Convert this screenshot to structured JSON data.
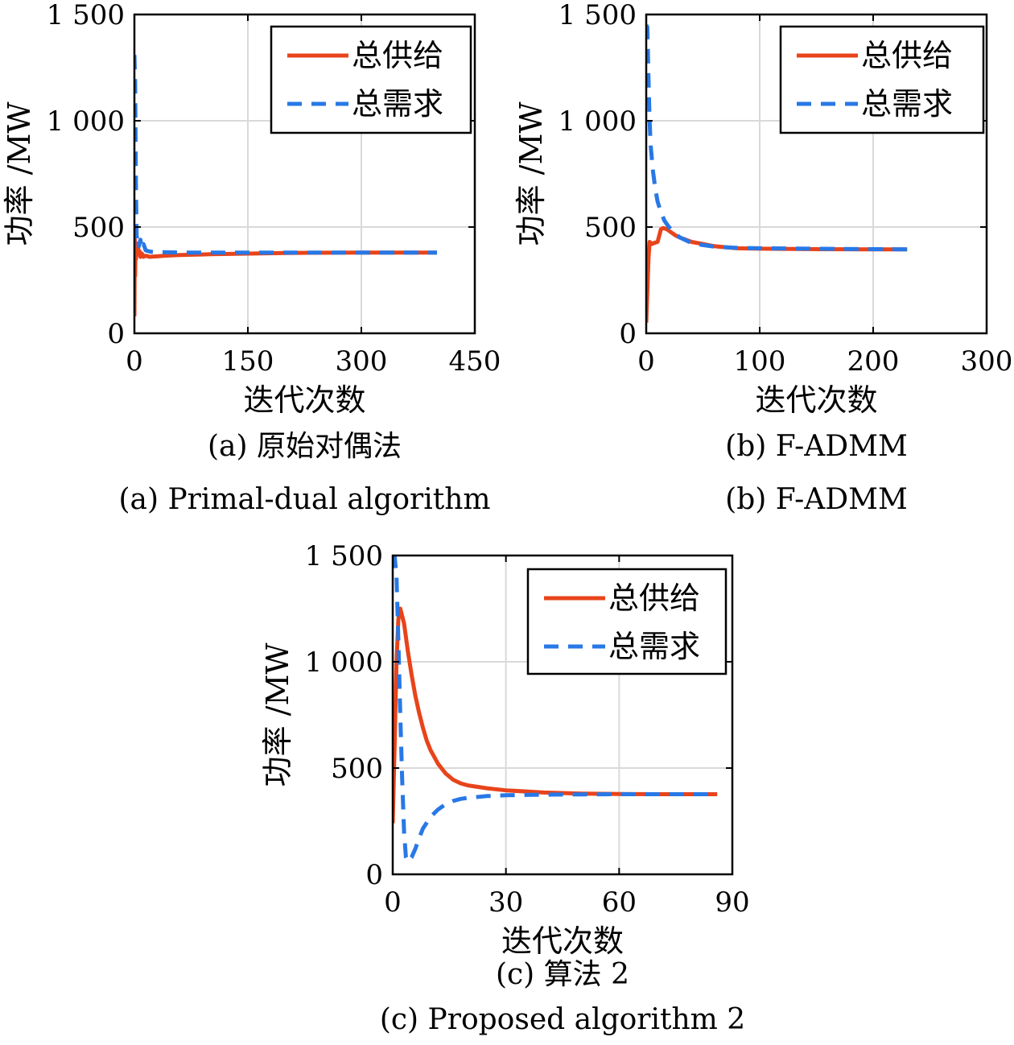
{
  "chart_data": [
    {
      "type": "line",
      "xlabel": "迭代次数",
      "ylabel": "功率 /MW",
      "xlim": [
        0,
        450
      ],
      "ylim": [
        0,
        1500
      ],
      "xticks": [
        0,
        150,
        300,
        450
      ],
      "xtick_labels": [
        "0",
        "150",
        "300",
        "450"
      ],
      "yticks": [
        0,
        500,
        1000,
        1500
      ],
      "ytick_labels": [
        "0",
        "500",
        "1 000",
        "1 500"
      ],
      "grid": true,
      "legend_position": "top-right",
      "caption_cn": "(a) 原始对偶法",
      "caption_en": "(a) Primal-dual algorithm",
      "series": [
        {
          "name": "总供给",
          "style": "solid",
          "color": "#E8441B",
          "x": [
            0,
            0.5,
            1,
            1.5,
            2,
            3,
            4,
            5,
            6,
            7,
            8,
            10,
            12,
            15,
            20,
            30,
            40,
            60,
            100,
            150,
            200,
            300,
            400
          ],
          "y": [
            80,
            440,
            270,
            420,
            350,
            410,
            380,
            400,
            370,
            385,
            360,
            375,
            360,
            365,
            360,
            362,
            365,
            368,
            372,
            375,
            378,
            380,
            380
          ]
        },
        {
          "name": "总需求",
          "style": "dashed",
          "color": "#2878E6",
          "x": [
            0,
            1,
            2,
            3,
            4,
            5,
            6,
            8,
            10,
            12,
            15,
            20,
            30,
            40,
            60,
            100,
            150,
            200,
            300,
            400
          ],
          "y": [
            1310,
            1180,
            700,
            460,
            430,
            445,
            410,
            440,
            400,
            420,
            390,
            385,
            380,
            382,
            380,
            380,
            380,
            380,
            380,
            380
          ]
        }
      ]
    },
    {
      "type": "line",
      "xlabel": "迭代次数",
      "ylabel": "功率 /MW",
      "xlim": [
        0,
        300
      ],
      "ylim": [
        0,
        1500
      ],
      "xticks": [
        0,
        100,
        200,
        300
      ],
      "xtick_labels": [
        "0",
        "100",
        "200",
        "300"
      ],
      "yticks": [
        0,
        500,
        1000,
        1500
      ],
      "ytick_labels": [
        "0",
        "500",
        "1 000",
        "1 500"
      ],
      "grid": true,
      "legend_position": "top-right",
      "caption_cn": "(b) F-ADMM",
      "caption_en": "(b) F-ADMM",
      "series": [
        {
          "name": "总供给",
          "style": "solid",
          "color": "#E8441B",
          "x": [
            0,
            2,
            3,
            5,
            7,
            10,
            13,
            15,
            18,
            22,
            26,
            30,
            35,
            40,
            50,
            60,
            70,
            80,
            100,
            150,
            200,
            230
          ],
          "y": [
            50,
            350,
            430,
            420,
            425,
            430,
            490,
            495,
            490,
            475,
            460,
            450,
            440,
            430,
            420,
            410,
            405,
            400,
            398,
            396,
            395,
            395
          ]
        },
        {
          "name": "总需求",
          "style": "dashed",
          "color": "#2878E6",
          "x": [
            0,
            1,
            2,
            3,
            4,
            6,
            8,
            10,
            13,
            16,
            20,
            25,
            30,
            40,
            50,
            60,
            80,
            100,
            150,
            200,
            230
          ],
          "y": [
            1450,
            1440,
            1200,
            1000,
            880,
            760,
            680,
            620,
            570,
            530,
            500,
            470,
            450,
            425,
            415,
            408,
            402,
            400,
            398,
            396,
            395
          ]
        }
      ]
    },
    {
      "type": "line",
      "xlabel": "迭代次数",
      "ylabel": "功率 /MW",
      "xlim": [
        0,
        90
      ],
      "ylim": [
        0,
        1500
      ],
      "xticks": [
        0,
        30,
        60,
        90
      ],
      "xtick_labels": [
        "0",
        "30",
        "60",
        "90"
      ],
      "yticks": [
        0,
        500,
        1000,
        1500
      ],
      "ytick_labels": [
        "0",
        "500",
        "1 000",
        "1 500"
      ],
      "grid": true,
      "legend_position": "top-right",
      "caption_cn": "(c) 算法 2",
      "caption_en": "(c) Proposed algorithm 2",
      "series": [
        {
          "name": "总供给",
          "style": "solid",
          "color": "#E8441B",
          "x": [
            0,
            0.5,
            1,
            1.5,
            2,
            3,
            4,
            5,
            6,
            7,
            8,
            9,
            10,
            12,
            14,
            16,
            18,
            20,
            25,
            30,
            40,
            50,
            60,
            70,
            80,
            86
          ],
          "y": [
            240,
            600,
            1000,
            1200,
            1250,
            1180,
            1050,
            940,
            840,
            760,
            690,
            630,
            585,
            520,
            475,
            445,
            428,
            418,
            405,
            395,
            385,
            380,
            378,
            377,
            377,
            377
          ]
        },
        {
          "name": "总需求",
          "style": "dashed",
          "color": "#2878E6",
          "x": [
            0,
            0.5,
            1,
            1.5,
            2,
            2.5,
            3,
            3.5,
            4,
            5,
            6,
            7,
            8,
            10,
            12,
            14,
            16,
            18,
            20,
            25,
            30,
            40,
            50,
            60,
            70,
            80,
            86
          ],
          "y": [
            1500,
            1500,
            1400,
            1100,
            750,
            450,
            200,
            80,
            60,
            80,
            120,
            170,
            215,
            270,
            305,
            330,
            345,
            355,
            360,
            368,
            372,
            375,
            376,
            377,
            377,
            377,
            377
          ]
        }
      ]
    }
  ]
}
